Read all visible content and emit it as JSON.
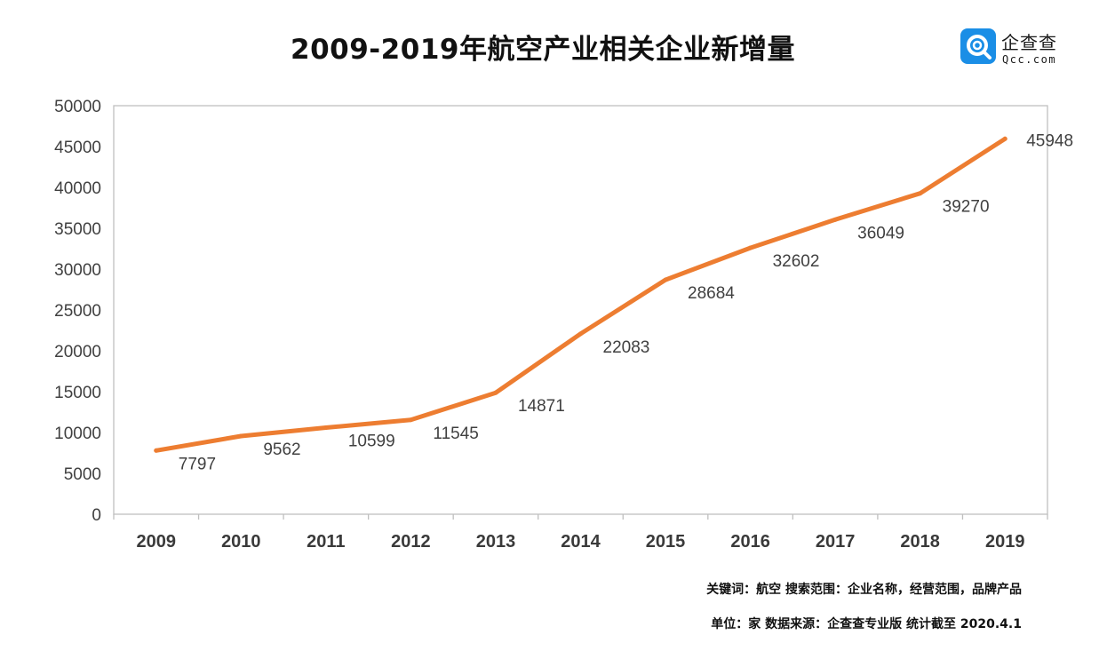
{
  "chart_data": {
    "type": "line",
    "title": "2009-2019年航空产业相关企业新增量",
    "categories": [
      "2009",
      "2010",
      "2011",
      "2012",
      "2013",
      "2014",
      "2015",
      "2016",
      "2017",
      "2018",
      "2019"
    ],
    "series": [
      {
        "values": [
          7797,
          9562,
          10599,
          11545,
          14871,
          22083,
          28684,
          32602,
          36049,
          39270,
          45948
        ]
      }
    ],
    "data_labels": [
      "7797",
      "9562",
      "10599",
      "11545",
      "14871",
      "22083",
      "28684",
      "32602",
      "36049",
      "39270",
      "45948"
    ],
    "ylim": [
      0,
      50000
    ],
    "yticks": [
      0,
      5000,
      10000,
      15000,
      20000,
      25000,
      30000,
      35000,
      40000,
      45000,
      50000
    ],
    "ytick_labels": [
      "0",
      "5000",
      "10000",
      "15000",
      "20000",
      "25000",
      "30000",
      "35000",
      "40000",
      "45000",
      "50000"
    ],
    "grid": false,
    "legend": "none",
    "colors": {
      "line": "#ED7D31",
      "axis": "#BFBFBF",
      "text": "#404040"
    }
  },
  "logo": {
    "name": "企查查",
    "domain": "Qcc.com",
    "icon": "qcc-search-icon",
    "color": "#1A8EE6"
  },
  "notes": {
    "keywords": "关键词：航空  搜索范围：企业名称，经营范围，品牌产品",
    "source": "单位：家    数据来源：企查查专业版    统计截至 2020.4.1"
  }
}
